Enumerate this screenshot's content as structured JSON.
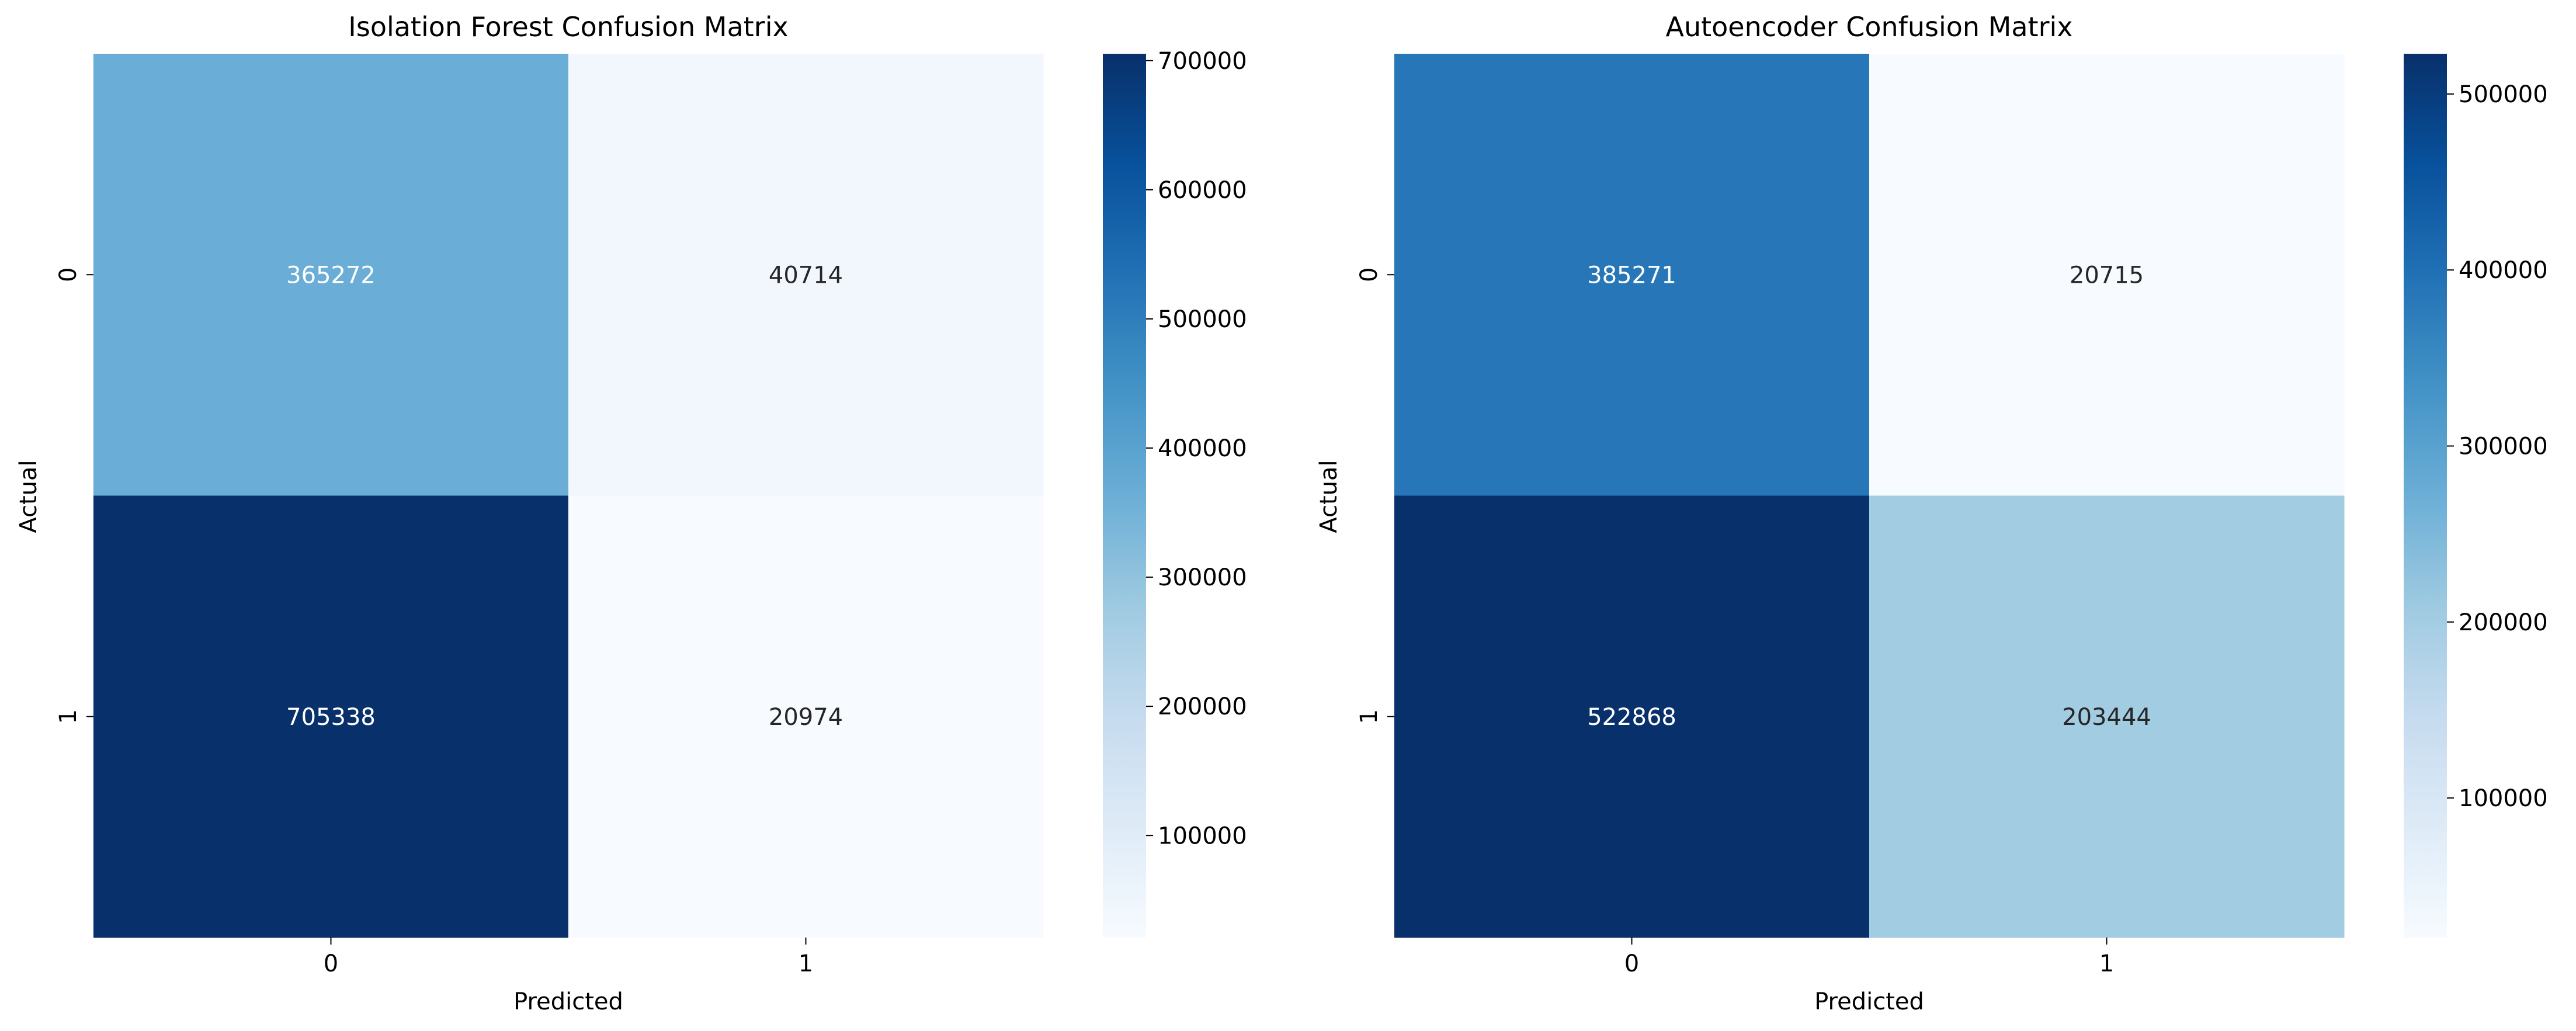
{
  "chart_data": [
    {
      "type": "heatmap",
      "title": "Isolation Forest Confusion Matrix",
      "xlabel": "Predicted",
      "ylabel": "Actual",
      "x_ticks": [
        "0",
        "1"
      ],
      "y_ticks": [
        "0",
        "1"
      ],
      "values": [
        [
          365272,
          40714
        ],
        [
          705338,
          20974
        ]
      ],
      "colormap": "Blues",
      "colorbar": {
        "min": 20974,
        "max": 705338,
        "ticks": [
          100000,
          200000,
          300000,
          400000,
          500000,
          600000,
          700000
        ],
        "tick_labels": [
          "100000",
          "200000",
          "300000",
          "400000",
          "500000",
          "600000",
          "700000"
        ]
      }
    },
    {
      "type": "heatmap",
      "title": "Autoencoder Confusion Matrix",
      "xlabel": "Predicted",
      "ylabel": "Actual",
      "x_ticks": [
        "0",
        "1"
      ],
      "y_ticks": [
        "0",
        "1"
      ],
      "values": [
        [
          385271,
          20715
        ],
        [
          522868,
          203444
        ]
      ],
      "colormap": "Blues",
      "colorbar": {
        "min": 20715,
        "max": 522868,
        "ticks": [
          100000,
          200000,
          300000,
          400000,
          500000
        ],
        "tick_labels": [
          "100000",
          "200000",
          "300000",
          "400000",
          "500000"
        ]
      }
    }
  ]
}
